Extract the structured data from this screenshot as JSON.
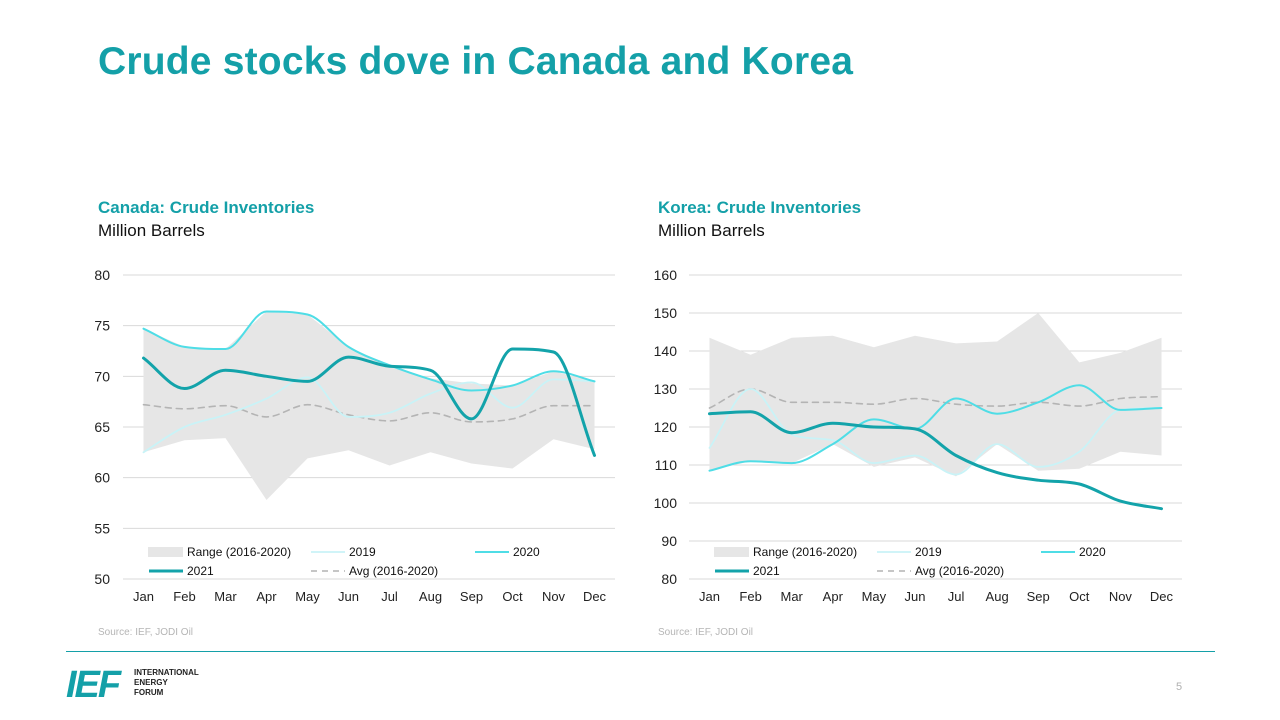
{
  "slide": {
    "title": "Crude stocks dove in Canada and Korea",
    "page_number": "5"
  },
  "logo": {
    "mark": "IEF",
    "lines": [
      "INTERNATIONAL",
      "ENERGY",
      "FORUM"
    ]
  },
  "colors": {
    "accent": "#14a0a8",
    "range_fill": "#e6e6e6",
    "series_2019": "#c9f3f7",
    "series_2020": "#4fdde6",
    "series_2021": "#13a3aa",
    "avg": "#b4b4b4"
  },
  "chart_data": [
    {
      "type": "line",
      "title": "Canada: Crude Inventories",
      "subtitle": "Million Barrels",
      "source": "Source: IEF, JODI Oil",
      "categories": [
        "Jan",
        "Feb",
        "Mar",
        "Apr",
        "May",
        "Jun",
        "Jul",
        "Aug",
        "Sep",
        "Oct",
        "Nov",
        "Dec"
      ],
      "yticks": [
        50,
        55,
        60,
        65,
        70,
        75,
        80
      ],
      "ylim": [
        50,
        80
      ],
      "grid": true,
      "legend": "bottom-left inside plot",
      "range": {
        "name": "Range (2016-2020)",
        "min": [
          62.5,
          63.7,
          63.9,
          57.8,
          61.9,
          62.7,
          61.2,
          62.5,
          61.4,
          60.9,
          63.8,
          62.8
        ],
        "max": [
          74.7,
          72.9,
          72.7,
          76.4,
          76.1,
          72.9,
          71.1,
          69.8,
          69.3,
          69.1,
          70.5,
          69.5
        ]
      },
      "series": [
        {
          "name": "2019",
          "values": [
            62.5,
            65.0,
            66.2,
            67.8,
            69.9,
            66.0,
            66.4,
            68.3,
            69.4,
            66.9,
            69.7,
            69.5
          ]
        },
        {
          "name": "2020",
          "values": [
            74.7,
            72.9,
            72.7,
            76.4,
            76.1,
            72.9,
            71.1,
            69.7,
            68.6,
            69.1,
            70.5,
            69.5
          ]
        },
        {
          "name": "2021",
          "values": [
            71.8,
            68.8,
            70.6,
            70.0,
            69.5,
            71.9,
            71.0,
            70.6,
            65.8,
            72.7,
            72.4,
            62.2
          ]
        },
        {
          "name": "Avg (2016-2020)",
          "values": [
            67.2,
            66.8,
            67.1,
            66.0,
            67.2,
            66.2,
            65.6,
            66.4,
            65.5,
            65.8,
            67.1,
            67.1
          ]
        }
      ]
    },
    {
      "type": "line",
      "title": "Korea: Crude Inventories",
      "subtitle": "Million Barrels",
      "source": "Source: IEF, JODI Oil",
      "categories": [
        "Jan",
        "Feb",
        "Mar",
        "Apr",
        "May",
        "Jun",
        "Jul",
        "Aug",
        "Sep",
        "Oct",
        "Nov",
        "Dec"
      ],
      "yticks": [
        80,
        90,
        100,
        110,
        120,
        130,
        140,
        150,
        160
      ],
      "ylim": [
        80,
        160
      ],
      "grid": true,
      "legend": "bottom-left inside plot",
      "range": {
        "name": "Range (2016-2020)",
        "min": [
          108.5,
          111.0,
          110.5,
          115.5,
          109.5,
          112.0,
          107.0,
          115.5,
          108.5,
          109.0,
          113.5,
          112.5
        ],
        "max": [
          143.5,
          139.0,
          143.5,
          144.0,
          141.0,
          144.0,
          142.0,
          142.5,
          150.0,
          137.0,
          139.5,
          143.5
        ]
      },
      "series": [
        {
          "name": "2019",
          "values": [
            114.5,
            130.0,
            118.0,
            116.5,
            110.5,
            112.5,
            107.5,
            115.5,
            109.5,
            113.5,
            124.5,
            125.0
          ]
        },
        {
          "name": "2020",
          "values": [
            108.5,
            111.0,
            110.5,
            115.5,
            122.0,
            119.5,
            127.5,
            123.5,
            126.5,
            131.0,
            124.5,
            125.0
          ]
        },
        {
          "name": "2021",
          "values": [
            123.5,
            124.0,
            118.5,
            121.0,
            120.0,
            119.5,
            112.5,
            108.0,
            106.0,
            105.0,
            100.5,
            98.5
          ]
        },
        {
          "name": "Avg (2016-2020)",
          "values": [
            125.0,
            130.0,
            126.5,
            126.5,
            126.0,
            127.5,
            126.0,
            125.5,
            126.5,
            125.5,
            127.5,
            128.0
          ]
        }
      ]
    }
  ]
}
